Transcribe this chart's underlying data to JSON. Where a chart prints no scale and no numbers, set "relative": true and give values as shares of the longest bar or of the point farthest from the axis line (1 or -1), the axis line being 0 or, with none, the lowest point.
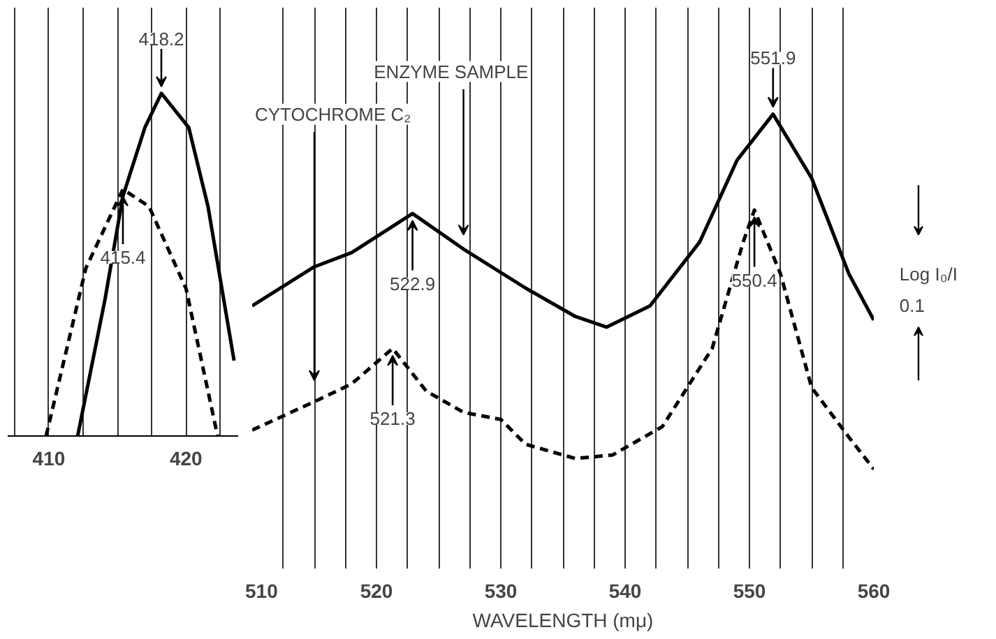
{
  "chart_data": [
    {
      "type": "line",
      "relative": true,
      "xlim": [
        407,
        423.8
      ],
      "xticks": [
        {
          "value": 407.5,
          "label": null
        },
        410,
        {
          "value": 412.5,
          "label": null
        },
        {
          "value": 415,
          "label": null
        },
        {
          "value": 417.5,
          "label": null
        },
        420,
        {
          "value": 422.5,
          "label": null
        }
      ],
      "grid": "x",
      "series": [
        {
          "color": "#000000",
          "line_style": "solid",
          "x": [
            412.1,
            412.9,
            414.1,
            415.4,
            417,
            418.2,
            420.2,
            421.6,
            423.5
          ],
          "values": [
            0,
            0.16,
            0.4,
            0.7,
            0.9,
            1.0,
            0.9,
            0.67,
            0.22
          ]
        },
        {
          "color": "#000000",
          "line_style": "dashed",
          "x": [
            409.8,
            412.7,
            415.4,
            417.3,
            420,
            422.3
          ],
          "values": [
            0,
            0.49,
            0.72,
            0.67,
            0.43,
            0
          ]
        }
      ],
      "annotations": [
        {
          "text": "418.2",
          "x": 418.2,
          "y": 1.0
        },
        {
          "text": "415.4",
          "x": 415.4,
          "y": 0.72
        }
      ]
    },
    {
      "type": "line",
      "relative": true,
      "xlabel": "WAVELENGTH (mμ)",
      "ylabel": "Log I₀/I",
      "xlim": [
        510,
        560
      ],
      "xticks": [
        510,
        {
          "value": 512.5,
          "label": null
        },
        {
          "value": 515,
          "label": null
        },
        {
          "value": 517.5,
          "label": null
        },
        520,
        {
          "value": 522.5,
          "label": null
        },
        {
          "value": 525,
          "label": null
        },
        {
          "value": 527.5,
          "label": null
        },
        530,
        {
          "value": 532.5,
          "label": null
        },
        {
          "value": 535,
          "label": null
        },
        {
          "value": 537.5,
          "label": null
        },
        540,
        {
          "value": 542.5,
          "label": null
        },
        {
          "value": 545,
          "label": null
        },
        {
          "value": 547.5,
          "label": null
        },
        550,
        {
          "value": 552.5,
          "label": null
        },
        {
          "value": 555,
          "label": null
        },
        {
          "value": 557.5,
          "label": null
        },
        560
      ],
      "grid": "x",
      "series": [
        {
          "name": "ENZYME SAMPLE",
          "color": "#000000",
          "line_style": "solid",
          "x": [
            510,
            515,
            518,
            522.9,
            527,
            532,
            536,
            538.5,
            542,
            546,
            549,
            551.9,
            555,
            558,
            560
          ],
          "values": [
            0.46,
            0.57,
            0.61,
            0.72,
            0.62,
            0.51,
            0.43,
            0.4,
            0.46,
            0.64,
            0.87,
            1.0,
            0.82,
            0.55,
            0.42
          ]
        },
        {
          "name": "CYTOCHROME C₂",
          "color": "#000000",
          "line_style": "dashed",
          "x": [
            510,
            515,
            518,
            521.3,
            524,
            527,
            530,
            532,
            536,
            539,
            543,
            547,
            549.5,
            550.4,
            552.5,
            555,
            558,
            560
          ],
          "values": [
            0.11,
            0.19,
            0.24,
            0.34,
            0.22,
            0.16,
            0.14,
            0.07,
            0.03,
            0.04,
            0.12,
            0.34,
            0.64,
            0.73,
            0.55,
            0.23,
            0.09,
            0
          ]
        }
      ],
      "annotations": [
        {
          "text": "522.9",
          "x": 522.9,
          "y": 0.72
        },
        {
          "text": "521.3",
          "x": 521.3,
          "y": 0.34
        },
        {
          "text": "551.9",
          "x": 551.9,
          "y": 1.0
        },
        {
          "text": "550.4",
          "x": 550.4,
          "y": 0.73
        },
        "0.1"
      ]
    }
  ]
}
